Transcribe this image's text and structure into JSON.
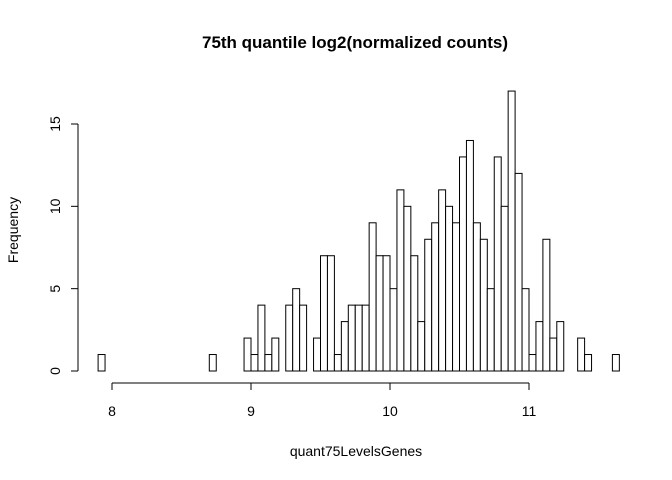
{
  "chart_data": {
    "type": "bar",
    "title": "75th quantile log2(normalized counts)",
    "xlabel": "quant75LevelsGenes",
    "ylabel": "Frequency",
    "bin_width": 0.05,
    "x_start": 7.9,
    "xlim": [
      7.9,
      11.6
    ],
    "ylim": [
      0,
      17
    ],
    "x_ticks": [
      8,
      9,
      10,
      11
    ],
    "x_tick_labels": [
      "8",
      "9",
      "10",
      "11"
    ],
    "y_ticks": [
      0,
      5,
      10,
      15
    ],
    "y_tick_labels": [
      "0",
      "5",
      "10",
      "15"
    ],
    "values": [
      1,
      0,
      0,
      0,
      0,
      0,
      0,
      0,
      0,
      0,
      0,
      0,
      0,
      0,
      0,
      0,
      1,
      0,
      0,
      0,
      0,
      2,
      1,
      4,
      1,
      2,
      0,
      4,
      5,
      4,
      0,
      2,
      7,
      7,
      1,
      3,
      4,
      4,
      4,
      9,
      7,
      7,
      5,
      11,
      10,
      7,
      3,
      8,
      9,
      11,
      10,
      9,
      13,
      14,
      9,
      8,
      5,
      13,
      10,
      17,
      12,
      5,
      1,
      3,
      8,
      2,
      3,
      0,
      0,
      2,
      1,
      0,
      0,
      0,
      1
    ],
    "grid": false,
    "legend": "none"
  }
}
